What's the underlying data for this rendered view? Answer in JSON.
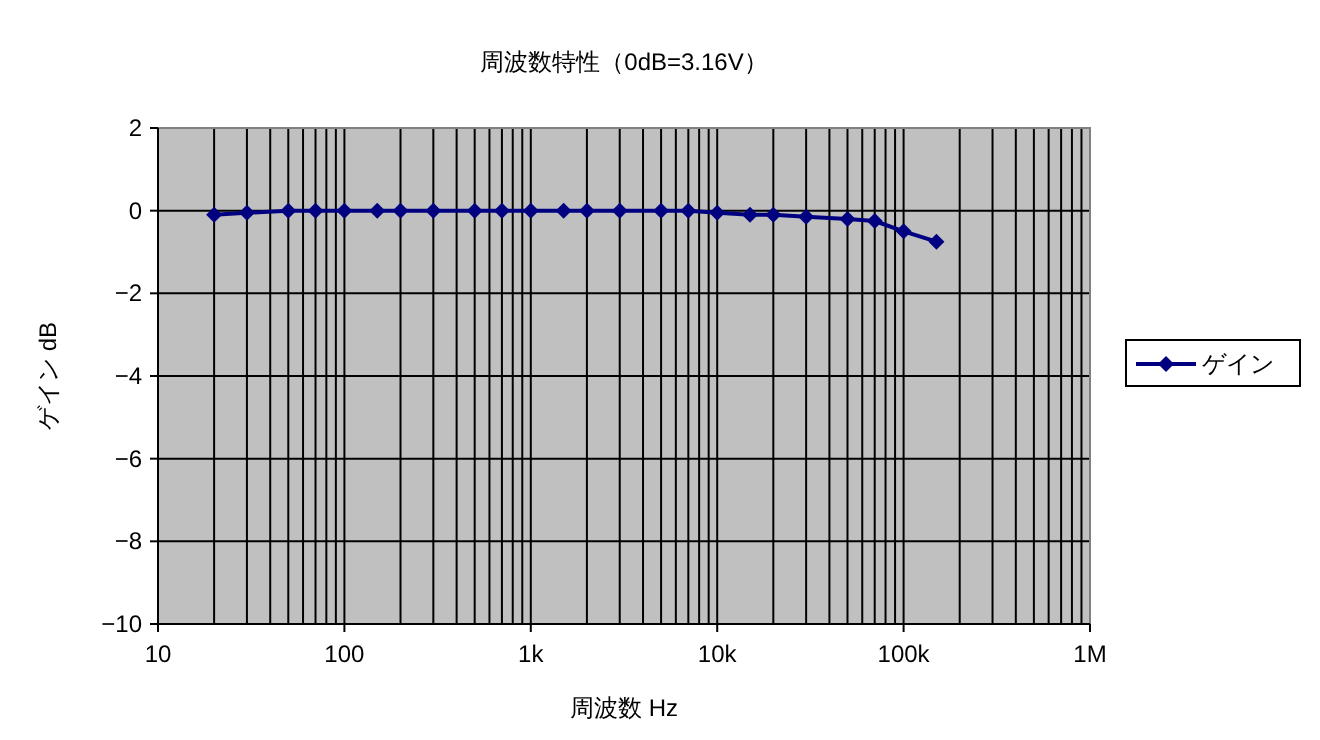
{
  "chart_data": {
    "type": "line",
    "title": "周波数特性（0dB=3.16V）",
    "xlabel": "周波数 Hz",
    "ylabel": "ゲイン dB",
    "x": [
      20,
      30,
      50,
      70,
      100,
      150,
      200,
      300,
      500,
      700,
      1000,
      1500,
      2000,
      3000,
      5000,
      7000,
      10000,
      15000,
      20000,
      30000,
      50000,
      70000,
      100000,
      150000
    ],
    "series": [
      {
        "name": "ゲイン",
        "color": "#000080",
        "values": [
          -0.1,
          -0.05,
          0,
          0,
          0,
          0,
          0,
          0,
          0,
          0,
          0,
          0,
          0,
          0,
          0,
          0,
          -0.05,
          -0.1,
          -0.1,
          -0.15,
          -0.2,
          -0.25,
          -0.5,
          -0.75
        ]
      }
    ],
    "log": "x",
    "xlim": [
      10,
      1000000
    ],
    "xticks": [
      10,
      100,
      {
        "value": 1000,
        "label": "1k"
      },
      {
        "value": 10000,
        "label": "10k"
      },
      {
        "value": 100000,
        "label": "100k"
      },
      {
        "value": 1000000,
        "label": "1M"
      }
    ],
    "ylim": [
      -10,
      2
    ],
    "yticks": [
      {
        "value": -10,
        "label": "−10"
      },
      {
        "value": -8,
        "label": "−8"
      },
      {
        "value": -6,
        "label": "−6"
      },
      {
        "value": -4,
        "label": "−4"
      },
      {
        "value": -2,
        "label": "−2"
      },
      0,
      2
    ],
    "grid": true,
    "legend": "right",
    "marker": "diamond",
    "line_style": "solid"
  }
}
